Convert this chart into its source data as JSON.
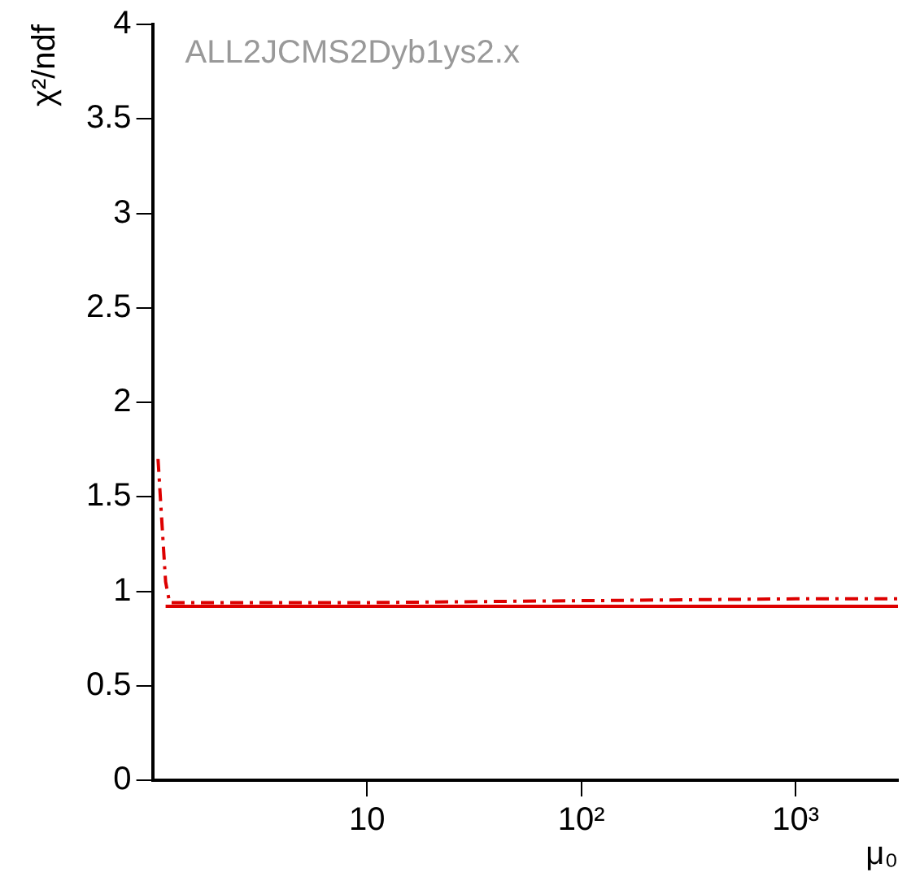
{
  "chart_data": {
    "type": "line",
    "xlabel": "μ₀",
    "ylabel": "χ²/ndf",
    "log": "x",
    "xlim": [
      1,
      3000
    ],
    "xticks": [
      10,
      {
        "value": 100,
        "label": "10²"
      },
      {
        "value": 1000,
        "label": "10³"
      }
    ],
    "ylim": [
      0,
      4
    ],
    "yticks": [
      0,
      0.5,
      1,
      1.5,
      2,
      2.5,
      3,
      3.5,
      4
    ],
    "grid": false,
    "legend": false,
    "marker": "none",
    "annotations": [
      "ALL2JCMS2Dyb1ys2.x"
    ],
    "series": [
      {
        "color": "#dd0000",
        "line_style": "solid",
        "x": [
          1.15,
          10,
          100,
          1000,
          3000
        ],
        "values": [
          0.92,
          0.92,
          0.92,
          0.92,
          0.92
        ]
      },
      {
        "color": "#dd0000",
        "line_style": "dashed",
        "x": [
          1.06,
          1.1,
          1.15,
          1.2,
          10,
          100,
          1000,
          3000
        ],
        "values": [
          1.7,
          1.4,
          1.05,
          0.94,
          0.94,
          0.95,
          0.96,
          0.96
        ]
      }
    ]
  }
}
